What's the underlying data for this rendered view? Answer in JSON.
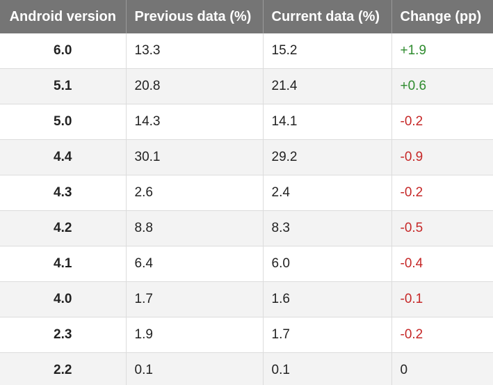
{
  "chart_data": {
    "type": "table",
    "columns": [
      "Android version",
      "Previous data (%)",
      "Current data (%)",
      "Change (pp)"
    ],
    "rows": [
      {
        "version": "6.0",
        "previous": "13.3",
        "current": "15.2",
        "change": "+1.9"
      },
      {
        "version": "5.1",
        "previous": "20.8",
        "current": "21.4",
        "change": "+0.6"
      },
      {
        "version": "5.0",
        "previous": "14.3",
        "current": "14.1",
        "change": "-0.2"
      },
      {
        "version": "4.4",
        "previous": "30.1",
        "current": "29.2",
        "change": "-0.9"
      },
      {
        "version": "4.3",
        "previous": "2.6",
        "current": "2.4",
        "change": "-0.2"
      },
      {
        "version": "4.2",
        "previous": "8.8",
        "current": "8.3",
        "change": "-0.5"
      },
      {
        "version": "4.1",
        "previous": "6.4",
        "current": "6.0",
        "change": "-0.4"
      },
      {
        "version": "4.0",
        "previous": "1.7",
        "current": "1.6",
        "change": "-0.1"
      },
      {
        "version": "2.3",
        "previous": "1.9",
        "current": "1.7",
        "change": "-0.2"
      },
      {
        "version": "2.2",
        "previous": "0.1",
        "current": "0.1",
        "change": "0"
      }
    ]
  },
  "colors": {
    "header_bg": "#757575",
    "header_text": "#ffffff",
    "positive": "#2e8b2e",
    "negative": "#c62828",
    "neutral": "#222222",
    "row_alt": "#f3f3f3"
  }
}
